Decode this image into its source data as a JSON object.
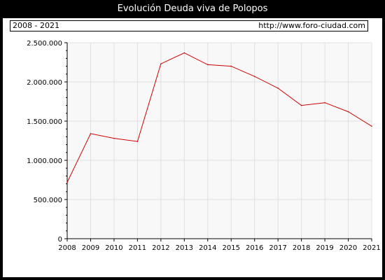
{
  "header": {
    "title": "Evolución Deuda viva de Polopos"
  },
  "info": {
    "period": "2008 - 2021",
    "url": "http://www.foro-ciudad.com"
  },
  "colors": {
    "line": "#cc0000",
    "plot_bg": "#f8f8f8",
    "grid": "#e0e0e0"
  },
  "chart_data": {
    "type": "line",
    "title": "Evolución Deuda viva de Polopos",
    "xlabel": "",
    "ylabel": "",
    "x": [
      2008,
      2009,
      2010,
      2011,
      2012,
      2013,
      2014,
      2015,
      2016,
      2017,
      2018,
      2019,
      2020,
      2021
    ],
    "series": [
      {
        "values": [
          720000,
          1340000,
          1280000,
          1240000,
          2230000,
          2370000,
          2220000,
          2200000,
          2070000,
          1920000,
          1700000,
          1735000,
          1620000,
          1435000
        ]
      }
    ],
    "ylim": [
      0,
      2500000
    ],
    "yticks": [
      0,
      500000,
      1000000,
      1500000,
      2000000,
      2500000
    ],
    "ytick_labels": [
      "0",
      "500.000",
      "1.000.000",
      "1.500.000",
      "2.000.000",
      "2.500.000"
    ],
    "xtick_labels": [
      "2008",
      "2009",
      "2010",
      "2011",
      "2012",
      "2013",
      "2014",
      "2015",
      "2016",
      "2017",
      "2018",
      "2019",
      "2020",
      "2021"
    ],
    "grid": true
  }
}
